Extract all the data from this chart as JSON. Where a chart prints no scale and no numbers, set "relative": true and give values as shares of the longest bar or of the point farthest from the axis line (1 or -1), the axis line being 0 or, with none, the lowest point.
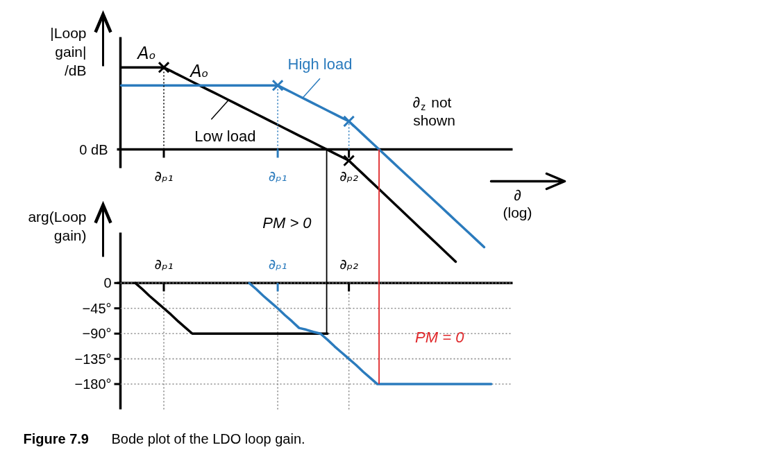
{
  "chart_data": [
    {
      "type": "line",
      "relative": true,
      "ylabel": "|Loop gain| /dB",
      "categories": [
        null,
        null,
        null,
        null,
        null,
        null,
        "∂ₚ₁",
        null,
        null,
        null,
        null,
        null,
        null,
        null,
        null,
        null,
        null,
        null,
        null,
        null,
        null,
        null,
        "∂ₚ₁",
        null,
        null,
        null,
        null,
        null,
        null,
        null,
        null,
        null,
        "∂ₚ₂",
        null,
        null,
        null,
        null,
        null,
        null,
        null,
        null,
        null,
        null,
        null,
        null,
        null,
        null,
        null,
        null,
        null,
        null,
        null,
        null,
        null,
        null,
        null
      ],
      "series": [
        {
          "name": "Low load",
          "color": "#000000",
          "values": [
            0.73,
            0.73,
            0.73,
            0.73,
            0.73,
            0.73,
            0.73,
            0.698,
            0.666,
            0.634,
            0.602,
            0.57,
            0.538,
            0.507,
            0.475,
            0.443,
            0.411,
            0.379,
            0.347,
            0.315,
            0.283,
            0.251,
            0.219,
            0.187,
            0.155,
            0.123,
            0.092,
            0.06,
            0.028,
            -0.004,
            -0.036,
            -0.068,
            -0.1,
            -0.16,
            -0.22,
            -0.28,
            -0.34,
            -0.4,
            -0.46,
            -0.52,
            -0.58,
            -0.64,
            -0.7,
            -0.76,
            -0.82,
            -0.88,
            -0.94,
            -1,
            null,
            null,
            null,
            null,
            null,
            null,
            null,
            null
          ]
        },
        {
          "name": "High load",
          "color": "#2b7bbd",
          "values": [
            0.57,
            0.57,
            0.57,
            0.57,
            0.57,
            0.57,
            0.57,
            0.57,
            0.57,
            0.57,
            0.57,
            0.57,
            0.57,
            0.57,
            0.57,
            0.57,
            0.57,
            0.57,
            0.57,
            0.57,
            0.57,
            0.57,
            0.57,
            0.538,
            0.506,
            0.474,
            0.442,
            0.41,
            0.378,
            0.346,
            0.314,
            0.282,
            0.25,
            0.191,
            0.132,
            0.073,
            0.014,
            -0.045,
            -0.104,
            -0.163,
            -0.222,
            -0.281,
            -0.34,
            -0.398,
            -0.457,
            -0.516,
            -0.575,
            -0.634,
            -0.693,
            -0.752,
            -0.811,
            -0.87,
            null,
            null,
            null,
            null
          ]
        },
        {
          "type": "lollipop",
          "marker": "cross",
          "color": "#000000",
          "values": [
            null,
            null,
            null,
            null,
            null,
            null,
            0.73,
            null,
            null,
            null,
            null,
            null,
            null,
            null,
            null,
            null,
            null,
            null,
            null,
            null,
            null,
            null,
            null,
            null,
            null,
            null,
            null,
            null,
            null,
            null,
            null,
            null,
            -0.1,
            null,
            null,
            null,
            null,
            null,
            null,
            null,
            null,
            null,
            null,
            null,
            null,
            null,
            null,
            null,
            null,
            null,
            null,
            null,
            null,
            null,
            null,
            null
          ]
        },
        {
          "type": "lollipop",
          "marker": "cross",
          "color": "#2b7bbd",
          "values": [
            null,
            null,
            null,
            null,
            null,
            null,
            null,
            null,
            null,
            null,
            null,
            null,
            null,
            null,
            null,
            null,
            null,
            null,
            null,
            null,
            null,
            null,
            0.57,
            null,
            null,
            null,
            null,
            null,
            null,
            null,
            null,
            null,
            0.25,
            null,
            null,
            null,
            null,
            null,
            null,
            null,
            null,
            null,
            null,
            null,
            null,
            null,
            null,
            null,
            null,
            null,
            null,
            null,
            null,
            null,
            null,
            null
          ]
        }
      ],
      "annotations": [
        {
          "text": "Aₒ",
          "y": 0.73
        },
        {
          "text": "Aₒ",
          "y": 0.57
        },
        "∂$_{z}$ not shown",
        "0 dB"
      ]
    },
    {
      "type": "line",
      "ylabel": "arg(Loop gain)",
      "xlabel": "∂ (log)",
      "categories": [
        null,
        null,
        null,
        null,
        null,
        null,
        "∂ₚ₁",
        null,
        null,
        null,
        null,
        null,
        null,
        null,
        null,
        null,
        null,
        null,
        null,
        null,
        null,
        null,
        "∂ₚ₁",
        null,
        null,
        null,
        null,
        null,
        null,
        null,
        null,
        null,
        "∂ₚ₂",
        null,
        null,
        null,
        null,
        null,
        null,
        null,
        null,
        null,
        null,
        null,
        null,
        null,
        null,
        null,
        null,
        null,
        null,
        null,
        null,
        null,
        null,
        null
      ],
      "ylim": [
        -225,
        90
      ],
      "yticks": [
        0,
        {
          "value": -45,
          "label": "−45°"
        },
        {
          "value": -90,
          "label": "−90°"
        },
        {
          "value": -135,
          "label": "−135°"
        },
        {
          "value": -180,
          "label": "−180°"
        }
      ],
      "grid": true,
      "series": [
        {
          "color": "#000000",
          "values": [
            null,
            null,
            0,
            -11,
            -23,
            -34,
            -45,
            -56,
            -68,
            -79,
            -90,
            -90,
            -90,
            -90,
            -90,
            -90,
            -90,
            -90,
            -90,
            -90,
            -90,
            -90,
            -90,
            -90,
            -90,
            -90,
            -90,
            -90,
            -90,
            -90,
            null,
            null,
            null,
            null,
            null,
            null,
            null,
            null,
            null,
            null,
            null,
            null,
            null,
            null,
            null,
            null,
            null,
            null,
            null,
            null,
            null,
            null,
            null,
            null,
            null,
            null
          ]
        },
        {
          "color": "#2b7bbd",
          "values": [
            null,
            null,
            null,
            null,
            null,
            null,
            null,
            null,
            null,
            null,
            null,
            null,
            null,
            null,
            null,
            null,
            null,
            null,
            0,
            -11,
            -23,
            -34,
            -45,
            -57,
            -68,
            -80,
            -83,
            -87,
            -90,
            -101,
            -113,
            -124,
            -135,
            -146,
            -158,
            -169,
            -180,
            -180,
            -180,
            -180,
            -180,
            -180,
            -180,
            -180,
            -180,
            -180,
            -180,
            -180,
            -180,
            -180,
            -180,
            -180,
            -180,
            null,
            null,
            null
          ]
        }
      ],
      "annotations": [
        "PM > 0",
        "PM = 0"
      ],
      "title": "Figure 7.9",
      "subtitle": "Bode plot of the LDO loop gain."
    }
  ]
}
